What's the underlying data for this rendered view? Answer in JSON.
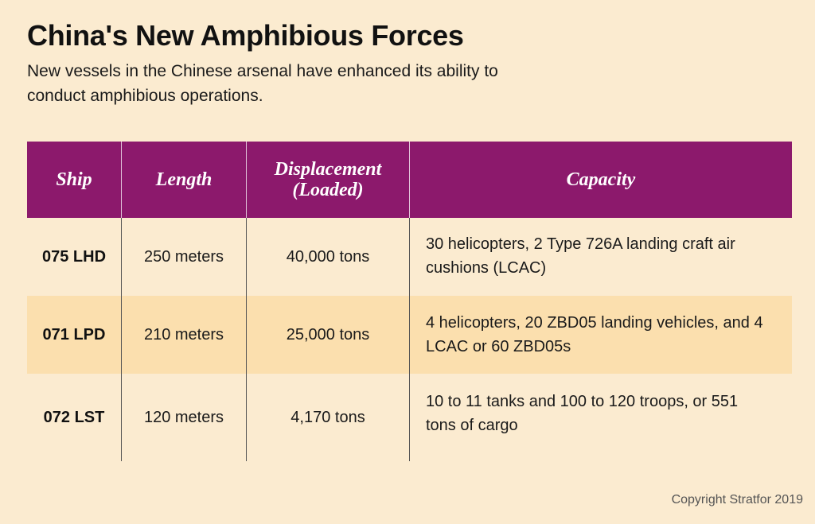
{
  "title": "China's New Amphibious Forces",
  "subtitle": "New vessels in the Chinese arsenal have enhanced its ability to conduct amphibious operations.",
  "table": {
    "headers": {
      "ship": "Ship",
      "length": "Length",
      "displacement": "Displacement (Loaded)",
      "capacity": "Capacity"
    },
    "rows": [
      {
        "ship": "075 LHD",
        "length": "250 meters",
        "displacement": "40,000 tons",
        "capacity": "30 helicopters, 2 Type 726A landing craft air cushions (LCAC)"
      },
      {
        "ship": "071 LPD",
        "length": "210 meters",
        "displacement": "25,000 tons",
        "capacity": "4 helicopters, 20 ZBD05 landing vehicles, and 4 LCAC or 60 ZBD05s"
      },
      {
        "ship": "072 LST",
        "length": "120 meters",
        "displacement": "4,170 tons",
        "capacity": "10 to 11 tanks and 100 to 120 troops, or 551 tons of cargo"
      }
    ]
  },
  "copyright": "Copyright Stratfor 2019",
  "colors": {
    "background": "#fbebd0",
    "header": "#8c196c",
    "stripe": "#fbdfae"
  }
}
